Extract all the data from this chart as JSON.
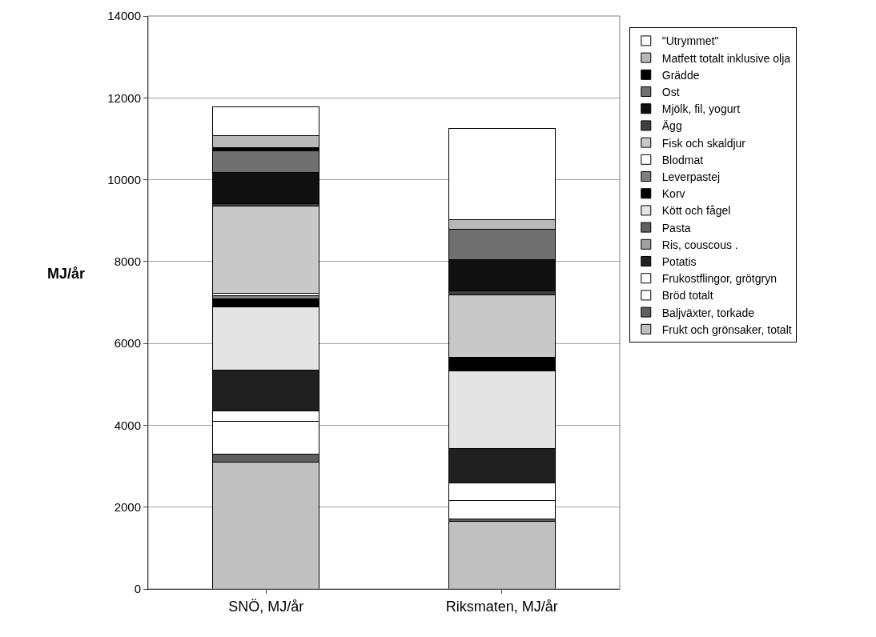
{
  "chart_data": {
    "type": "bar",
    "stacked": true,
    "ylabel": "MJ/år",
    "categories": [
      "SNÖ, MJ/år",
      "Riksmaten, MJ/år"
    ],
    "ylim": [
      0,
      14000
    ],
    "yticks": [
      0,
      2000,
      4000,
      6000,
      8000,
      10000,
      12000,
      14000
    ],
    "grid": "y",
    "legend": "right",
    "series": [
      {
        "name": "Frukt och grönsaker, totalt",
        "color": "#c0c0c0",
        "values": [
          3100,
          1650
        ]
      },
      {
        "name": "Baljväxter, torkade",
        "color": "#606060",
        "values": [
          190,
          60
        ]
      },
      {
        "name": "Bröd totalt",
        "color": "#ffffff",
        "values": [
          800,
          450
        ]
      },
      {
        "name": "Frukostflingor, grötgryn",
        "color": "#ffffff",
        "values": [
          270,
          440
        ]
      },
      {
        "name": "Potatis",
        "color": "#202020",
        "values": [
          990,
          830
        ]
      },
      {
        "name": "Ris, couscous .",
        "color": "#a0a0a0",
        "values": [
          0,
          0
        ]
      },
      {
        "name": "Pasta",
        "color": "#606060",
        "values": [
          0,
          0
        ]
      },
      {
        "name": "Kött och fågel",
        "color": "#e4e4e4",
        "values": [
          1540,
          1900
        ]
      },
      {
        "name": "Korv",
        "color": "#000000",
        "values": [
          200,
          330
        ]
      },
      {
        "name": "Leverpastej",
        "color": "#808080",
        "values": [
          80,
          0
        ]
      },
      {
        "name": "Blodmat",
        "color": "#ffffff",
        "values": [
          60,
          0
        ]
      },
      {
        "name": "Fisk och skaldjur",
        "color": "#c8c8c8",
        "values": [
          2120,
          1530
        ]
      },
      {
        "name": "Ägg",
        "color": "#404040",
        "values": [
          70,
          100
        ]
      },
      {
        "name": "Mjölk, fil, yogurt",
        "color": "#101010",
        "values": [
          750,
          750
        ]
      },
      {
        "name": "Ost",
        "color": "#707070",
        "values": [
          530,
          740
        ]
      },
      {
        "name": "Grädde",
        "color": "#000000",
        "values": [
          80,
          0
        ]
      },
      {
        "name": "Matfett totalt inklusive olja",
        "color": "#b8b8b8",
        "values": [
          290,
          240
        ]
      },
      {
        "name": "\"Utrymmet\"",
        "color": "#ffffff",
        "values": [
          710,
          2230
        ]
      }
    ]
  }
}
